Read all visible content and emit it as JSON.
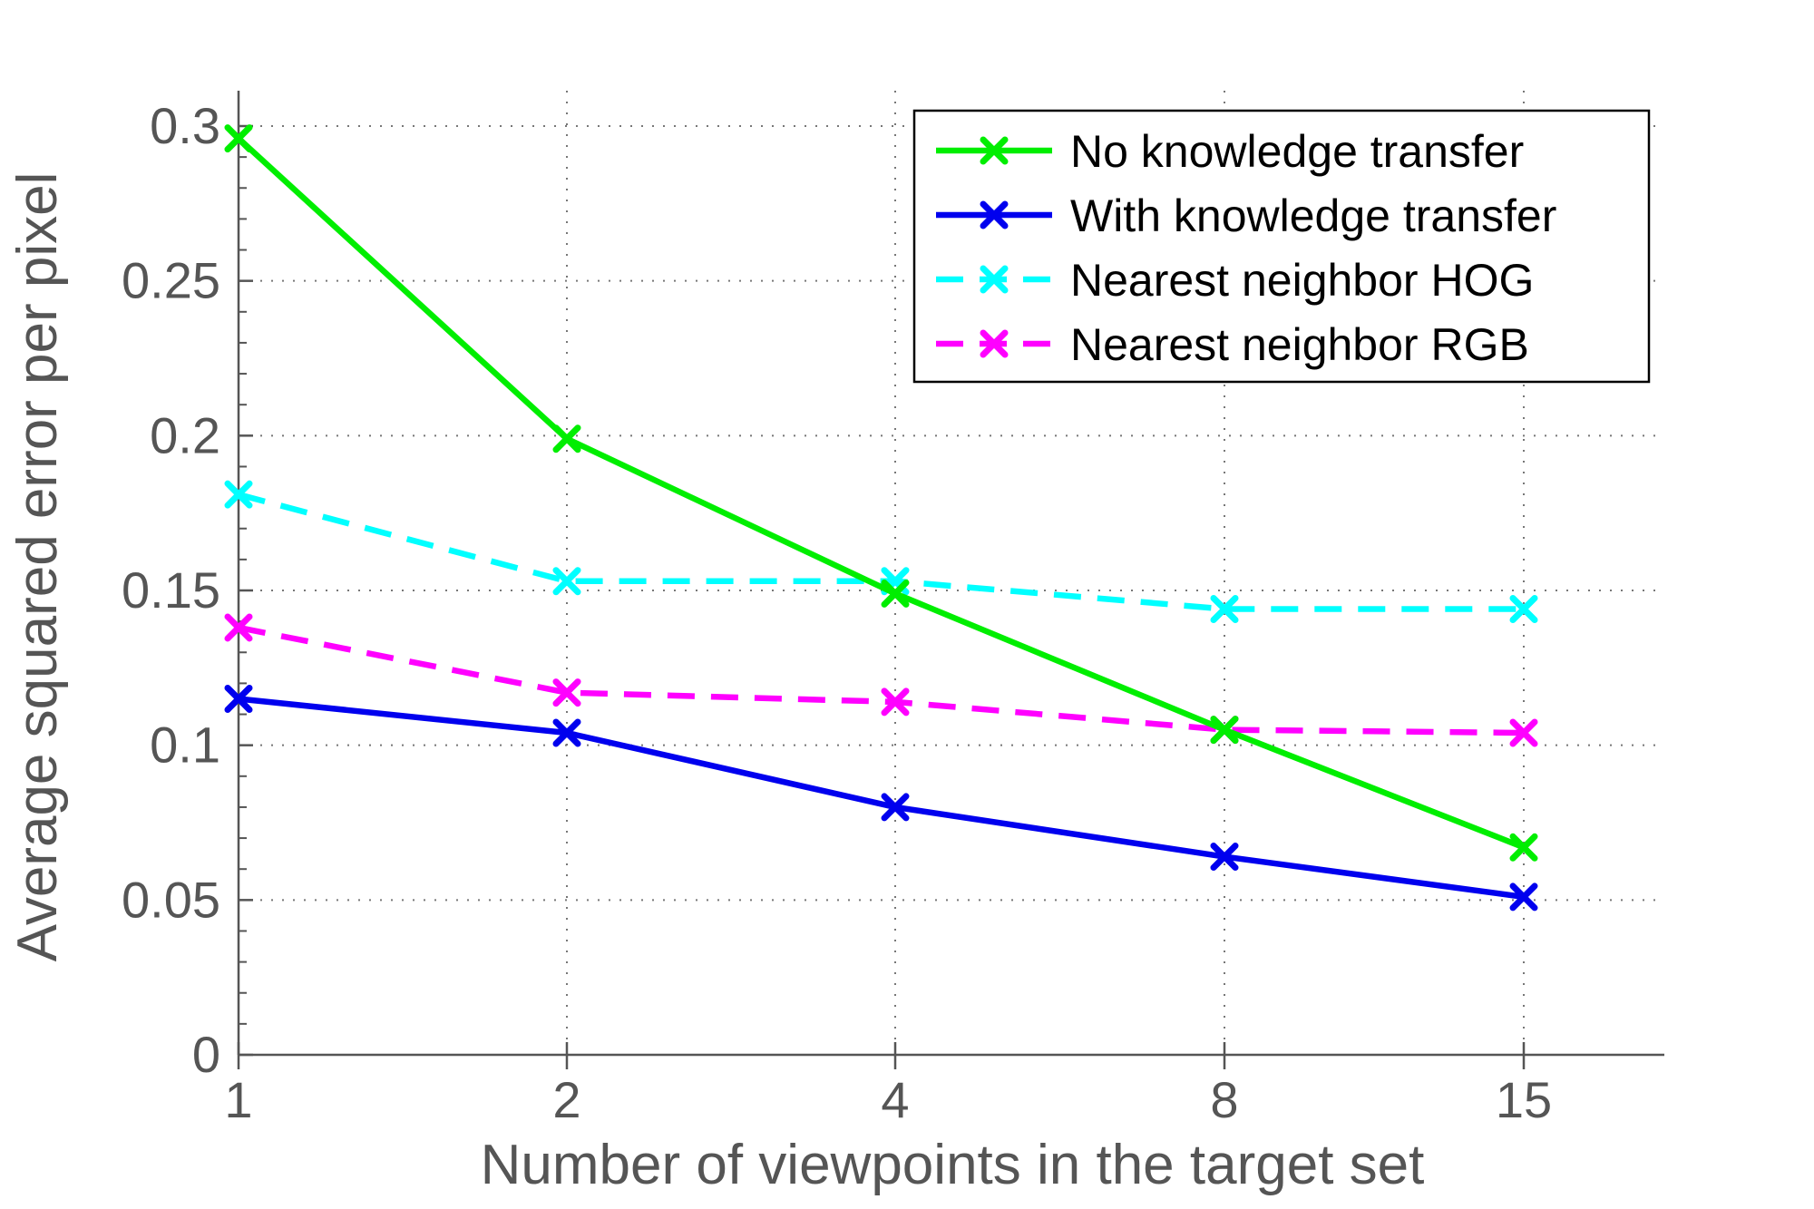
{
  "chart_data": {
    "type": "line",
    "xlabel": "Number of viewpoints in the target set",
    "ylabel": "Average squared error per pixel",
    "x_categories": [
      "1",
      "2",
      "4",
      "8",
      "15"
    ],
    "x_scale": "log2",
    "x_values": [
      1,
      2,
      4,
      8,
      15
    ],
    "ylim": [
      0,
      0.3
    ],
    "yticks": [
      "0",
      "0.05",
      "0.1",
      "0.15",
      "0.2",
      "0.25",
      "0.3"
    ],
    "ytick_values": [
      0,
      0.05,
      0.1,
      0.15,
      0.2,
      0.25,
      0.3
    ],
    "grid": true,
    "legend_position": "top-right",
    "series": [
      {
        "name": "No knowledge transfer",
        "color": "#00ee00",
        "dash": "solid",
        "marker": "x",
        "values": [
          0.296,
          0.199,
          0.149,
          0.105,
          0.067
        ]
      },
      {
        "name": "With knowledge transfer",
        "color": "#0000ee",
        "dash": "solid",
        "marker": "x",
        "values": [
          0.115,
          0.104,
          0.08,
          0.064,
          0.051
        ]
      },
      {
        "name": "Nearest neighbor HOG",
        "color": "#00ffff",
        "dash": "dashed",
        "marker": "x",
        "values": [
          0.181,
          0.153,
          0.153,
          0.144,
          0.144
        ]
      },
      {
        "name": "Nearest neighbor RGB",
        "color": "#ff00ff",
        "dash": "dashed",
        "marker": "x",
        "values": [
          0.138,
          0.117,
          0.114,
          0.105,
          0.104
        ]
      }
    ]
  }
}
